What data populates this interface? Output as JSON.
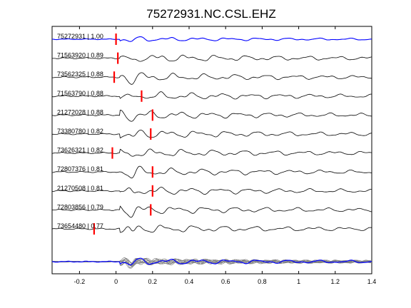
{
  "chart_data": {
    "type": "line",
    "title": "75272931.NC.CSL.EHZ",
    "xlabel": "",
    "ylabel": "",
    "xlim": [
      -0.35,
      1.4
    ],
    "xticks": [
      -0.2,
      0,
      0.2,
      0.4,
      0.6,
      0.8,
      1,
      1.2,
      1.4
    ],
    "xtick_labels": [
      "-0.2",
      "0",
      "0.2",
      "0.4",
      "0.6",
      "0.8",
      "1",
      "1.2",
      "1.4"
    ],
    "grid": false,
    "colors": {
      "reference": "#0000ff",
      "trace": "#000000",
      "pick": "#ff0000",
      "stack": "#808080"
    },
    "traces": [
      {
        "label": "75272931 | 1.00",
        "pick": 0.0,
        "reference": true
      },
      {
        "label": "71563920 | 0.89",
        "pick": 0.01
      },
      {
        "label": "73562325 | 0.88",
        "pick": -0.01
      },
      {
        "label": "71563790 | 0.88",
        "pick": 0.14
      },
      {
        "label": "21272028 | 0.88",
        "pick": 0.2
      },
      {
        "label": "73380780 | 0.82",
        "pick": 0.19
      },
      {
        "label": "73626321 | 0.82",
        "pick": -0.02
      },
      {
        "label": "72807376 | 0.81",
        "pick": 0.2
      },
      {
        "label": "21270508 | 0.81",
        "pick": 0.2
      },
      {
        "label": "72803856 | 0.79",
        "pick": 0.19
      },
      {
        "label": "73654480 | 0.77",
        "pick": -0.12
      }
    ],
    "stack": {
      "count": 11
    }
  }
}
